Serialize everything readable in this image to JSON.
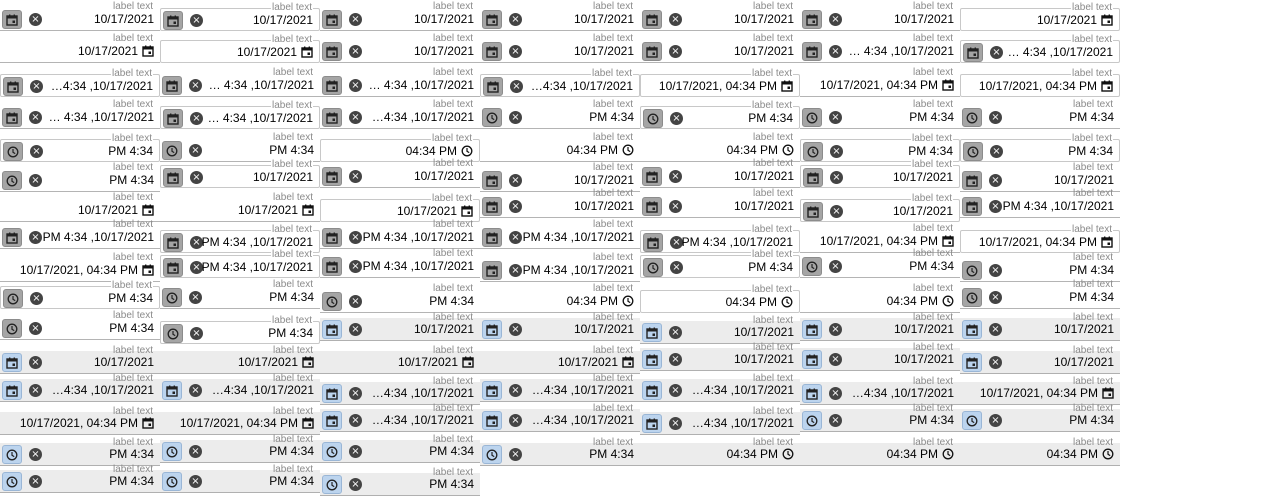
{
  "label_text": "label text",
  "values": {
    "date": "10/17/2021",
    "date_trunc": "…4:34 ,10/17/2021",
    "date_trunc_spaced": "… 4:34 ,10/17/2021",
    "datetime_rtl": "PM 4:34 ,10/17/2021",
    "datetime_ltr": "10/17/2021, 04:34  PM",
    "time_rtl": "PM 4:34",
    "time_ltr": "04:34  PM"
  },
  "icons": {
    "calendar": "calendar-icon",
    "clock": "clock-icon",
    "clear": "clear-icon"
  },
  "colors": {
    "icon_button_gray": "#a5a5a5",
    "icon_button_blue": "#bcd4ee",
    "filled_background": "#ececec",
    "label": "#8a8a8a"
  }
}
